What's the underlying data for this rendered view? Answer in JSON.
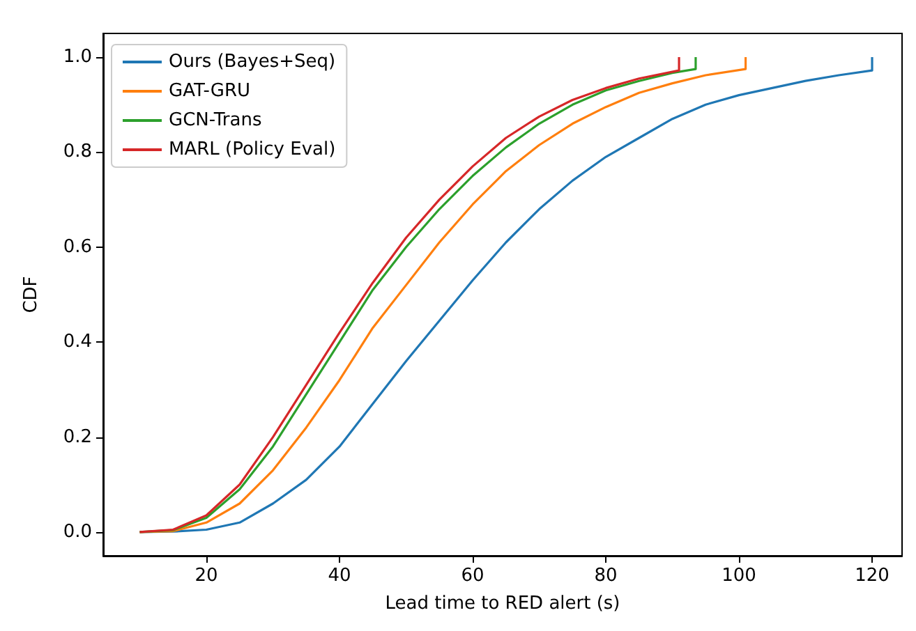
{
  "chart_data": {
    "type": "line",
    "xlabel": "Lead time to RED alert (s)",
    "ylabel": "CDF",
    "xlim": [
      4.5,
      124.5
    ],
    "ylim": [
      -0.05,
      1.05
    ],
    "xticks": [
      20,
      40,
      60,
      80,
      100,
      120
    ],
    "yticks": [
      {
        "value": 0,
        "label": "0.0"
      },
      {
        "value": 0.2,
        "label": "0.2"
      },
      {
        "value": 0.4,
        "label": "0.4"
      },
      {
        "value": 0.6,
        "label": "0.6"
      },
      {
        "value": 0.8,
        "label": "0.8"
      },
      {
        "value": 1,
        "label": "1.0"
      }
    ],
    "grid": false,
    "legend": "top left",
    "marker": "none",
    "line_style": "solid",
    "series": [
      {
        "name": "Ours (Bayes+Seq)",
        "color": "#1f77b4",
        "x": [
          10,
          15,
          20,
          25,
          30,
          35,
          40,
          45,
          50,
          55,
          60,
          65,
          70,
          75,
          80,
          85,
          90,
          95,
          100,
          105,
          110,
          115,
          120,
          120
        ],
        "values": [
          0,
          0.001,
          0.005,
          0.02,
          0.06,
          0.11,
          0.18,
          0.27,
          0.36,
          0.445,
          0.53,
          0.61,
          0.68,
          0.74,
          0.79,
          0.83,
          0.87,
          0.9,
          0.92,
          0.935,
          0.95,
          0.962,
          0.972,
          1
        ]
      },
      {
        "name": "GAT-GRU",
        "color": "#ff7f0e",
        "x": [
          10,
          15,
          20,
          25,
          30,
          35,
          40,
          45,
          50,
          55,
          60,
          65,
          70,
          75,
          80,
          85,
          90,
          95,
          101,
          101
        ],
        "values": [
          0,
          0.002,
          0.02,
          0.06,
          0.13,
          0.22,
          0.32,
          0.43,
          0.52,
          0.61,
          0.69,
          0.76,
          0.815,
          0.86,
          0.895,
          0.925,
          0.945,
          0.962,
          0.975,
          1
        ]
      },
      {
        "name": "GCN-Trans",
        "color": "#2ca02c",
        "x": [
          10,
          15,
          20,
          25,
          30,
          35,
          40,
          45,
          50,
          55,
          60,
          65,
          70,
          75,
          80,
          85,
          90,
          93.5,
          93.5
        ],
        "values": [
          0,
          0.004,
          0.03,
          0.09,
          0.18,
          0.29,
          0.4,
          0.51,
          0.6,
          0.68,
          0.75,
          0.81,
          0.86,
          0.9,
          0.93,
          0.95,
          0.967,
          0.975,
          1
        ]
      },
      {
        "name": "MARL (Policy Eval)",
        "color": "#d62728",
        "x": [
          10,
          15,
          20,
          25,
          30,
          35,
          40,
          45,
          50,
          55,
          60,
          65,
          70,
          75,
          80,
          85,
          91,
          91
        ],
        "values": [
          0,
          0.005,
          0.035,
          0.1,
          0.2,
          0.31,
          0.42,
          0.525,
          0.62,
          0.7,
          0.77,
          0.83,
          0.875,
          0.91,
          0.935,
          0.955,
          0.972,
          1
        ]
      }
    ]
  }
}
